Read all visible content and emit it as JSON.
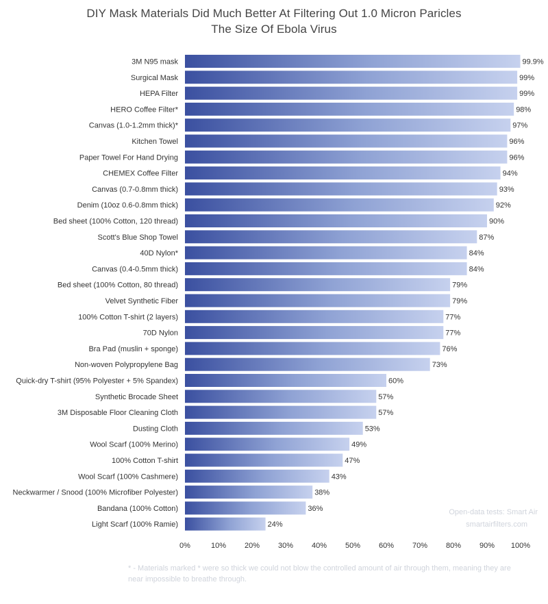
{
  "chart_data": {
    "type": "bar",
    "orientation": "horizontal",
    "title": "DIY Mask Materials Did Much Better At Filtering Out 1.0 Micron Paricles",
    "subtitle": "The Size Of Ebola Virus",
    "categories": [
      "3M N95 mask",
      "Surgical Mask",
      "HEPA Filter",
      "HERO Coffee Filter*",
      "Canvas (1.0-1.2mm thick)*",
      "Kitchen Towel",
      "Paper Towel For Hand Drying",
      "CHEMEX Coffee Filter",
      "Canvas (0.7-0.8mm thick)",
      "Denim (10oz 0.6-0.8mm thick)",
      "Bed sheet (100% Cotton, 120 thread)",
      "Scott's Blue Shop Towel",
      "40D Nylon*",
      "Canvas (0.4-0.5mm thick)",
      "Bed sheet (100% Cotton, 80 thread)",
      "Velvet Synthetic Fiber",
      "100% Cotton T-shirt (2 layers)",
      "70D Nylon",
      "Bra Pad (muslin + sponge)",
      "Non-woven Polypropylene Bag",
      "Quick-dry T-shirt (95% Polyester + 5% Spandex)",
      "Synthetic Brocade Sheet",
      "3M Disposable Floor Cleaning Cloth",
      "Dusting Cloth",
      "Wool Scarf (100% Merino)",
      "100% Cotton T-shirt",
      "Wool Scarf (100% Cashmere)",
      "Neckwarmer / Snood (100% Microfiber Polyester)",
      "Bandana (100% Cotton)",
      "Light Scarf (100% Ramie)"
    ],
    "values": [
      99.9,
      99,
      99,
      98,
      97,
      96,
      96,
      94,
      93,
      92,
      90,
      87,
      84,
      84,
      79,
      79,
      77,
      77,
      76,
      73,
      60,
      57,
      57,
      53,
      49,
      47,
      43,
      38,
      36,
      24
    ],
    "value_labels": [
      "99.9%",
      "99%",
      "99%",
      "98%",
      "97%",
      "96%",
      "96%",
      "94%",
      "93%",
      "92%",
      "90%",
      "87%",
      "84%",
      "84%",
      "79%",
      "79%",
      "77%",
      "77%",
      "76%",
      "73%",
      "60%",
      "57%",
      "57%",
      "53%",
      "49%",
      "47%",
      "43%",
      "38%",
      "36%",
      "24%"
    ],
    "xlim": [
      0,
      100
    ],
    "x_ticks": [
      "0%",
      "10%",
      "20%",
      "30%",
      "40%",
      "50%",
      "60%",
      "70%",
      "80%",
      "90%",
      "100%"
    ],
    "grid": false,
    "legend": "none",
    "colors": {
      "bar_start": "#3b50a0",
      "bar_mid": "#8fa2d4",
      "bar_end": "#c6d1ee"
    }
  },
  "credit": {
    "line1": "Open-data tests: Smart Air",
    "line2": "smartairfilters.com"
  },
  "footnote": {
    "line1": "* - Materials marked * were so thick we could not blow the controlled amount of air through them, meaning they are",
    "line2": "near impossible to breathe through."
  }
}
